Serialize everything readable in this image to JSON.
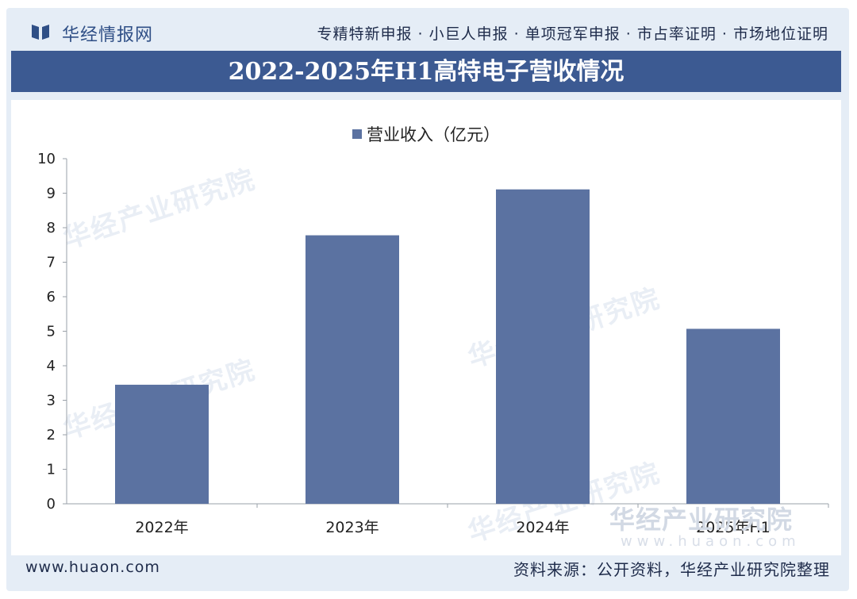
{
  "header": {
    "brand": "华经情报网",
    "logo_icon": "book-icon",
    "services": "专精特新申报 · 小巨人申报 · 单项冠军申报 · 市占率证明 · 市场地位证明"
  },
  "watermark": {
    "line": "华经产业研究院",
    "url": "www.huaon.com"
  },
  "footer": {
    "url": "www.huaon.com",
    "source": "资料来源：公开资料，华经产业研究院整理"
  },
  "colors": {
    "banner": "#3c5a92",
    "bar": "#5b72a1",
    "brand": "#2f4f86"
  },
  "chart_data": {
    "type": "bar",
    "title": "2022-2025年H1高特电子营收情况",
    "categories": [
      "2022年",
      "2023年",
      "2024年",
      "2025年H1"
    ],
    "series": [
      {
        "name": "营业收入（亿元）",
        "values": [
          3.45,
          7.78,
          9.11,
          5.07
        ]
      }
    ],
    "ylim": [
      0,
      10
    ],
    "yticks": [
      0,
      1,
      2,
      3,
      4,
      5,
      6,
      7,
      8,
      9,
      10
    ],
    "xlabel": "",
    "ylabel": "",
    "grid": false,
    "legend": "top-center"
  }
}
